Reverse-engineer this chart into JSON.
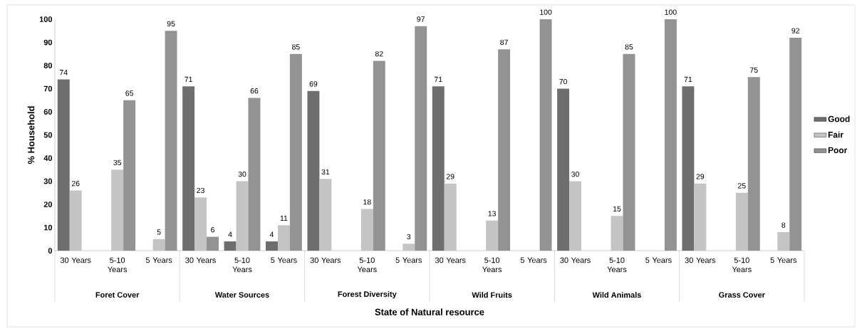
{
  "chart_data": {
    "type": "bar",
    "xlabel": "State of Natural resource",
    "ylabel": "% Household",
    "categories": [
      "30 Years",
      "5-10 Years",
      "5 Years",
      "30 Years",
      "5-10 Years",
      "5 Years",
      "30 Years",
      "5-10 Years",
      "5 Years",
      "30 Years",
      "5-10 Years",
      "5 Years",
      "30 Years",
      "5-10 Years",
      "5 Years",
      "30 Years",
      "5-10 Years",
      "5 Years"
    ],
    "series": [
      {
        "name": "Good",
        "color": "#6e6e6e",
        "values": [
          74,
          null,
          null,
          71,
          4,
          4,
          69,
          null,
          null,
          71,
          null,
          null,
          70,
          null,
          null,
          71,
          null,
          null
        ]
      },
      {
        "name": "Fair",
        "color": "#c4c4c4",
        "values": [
          26,
          35,
          5,
          23,
          30,
          11,
          31,
          18,
          3,
          29,
          13,
          null,
          30,
          15,
          null,
          29,
          25,
          8
        ]
      },
      {
        "name": "Poor",
        "color": "#939393",
        "values": [
          null,
          65,
          95,
          6,
          66,
          85,
          null,
          82,
          97,
          null,
          87,
          100,
          null,
          85,
          100,
          null,
          75,
          92
        ]
      }
    ],
    "annotations": [
      "Foret Cover",
      "Water Sources",
      "Forest Diversity",
      "Wild Fruits",
      "Wild Animals",
      "Grass Cover"
    ],
    "ylim": [
      0,
      100
    ],
    "yticks": [
      0,
      10,
      20,
      30,
      40,
      50,
      60,
      70,
      80,
      90,
      100
    ],
    "data_labels": true,
    "legend": "right"
  }
}
